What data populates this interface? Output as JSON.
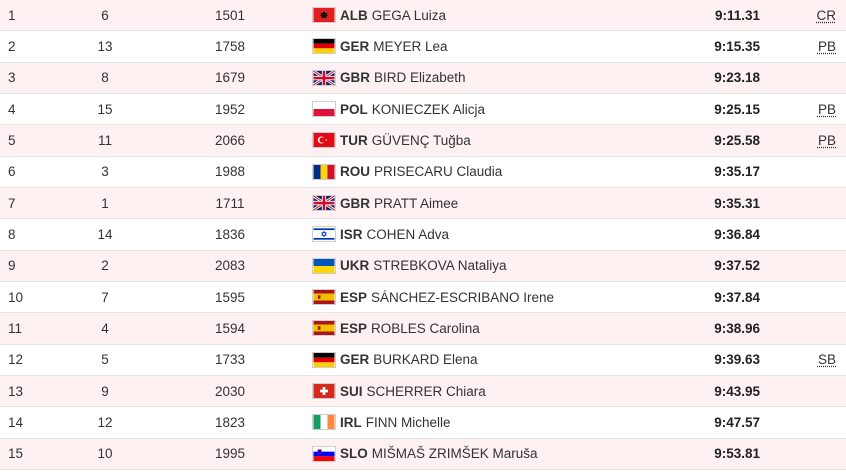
{
  "results": [
    {
      "rank": "1",
      "lane": "6",
      "bib": "1501",
      "flag": "albania-flag",
      "country": "ALB",
      "name": "GEGA Luiza",
      "time": "9:11.31",
      "note": "CR"
    },
    {
      "rank": "2",
      "lane": "13",
      "bib": "1758",
      "flag": "germany-flag",
      "country": "GER",
      "name": "MEYER Lea",
      "time": "9:15.35",
      "note": "PB"
    },
    {
      "rank": "3",
      "lane": "8",
      "bib": "1679",
      "flag": "great-britain-flag",
      "country": "GBR",
      "name": "BIRD Elizabeth",
      "time": "9:23.18",
      "note": ""
    },
    {
      "rank": "4",
      "lane": "15",
      "bib": "1952",
      "flag": "poland-flag",
      "country": "POL",
      "name": "KONIECZEK Alicja",
      "time": "9:25.15",
      "note": "PB"
    },
    {
      "rank": "5",
      "lane": "11",
      "bib": "2066",
      "flag": "turkey-flag",
      "country": "TUR",
      "name": "GÜVENÇ Tuğba",
      "time": "9:25.58",
      "note": "PB"
    },
    {
      "rank": "6",
      "lane": "3",
      "bib": "1988",
      "flag": "romania-flag",
      "country": "ROU",
      "name": "PRISECARU Claudia",
      "time": "9:35.17",
      "note": ""
    },
    {
      "rank": "7",
      "lane": "1",
      "bib": "1711",
      "flag": "great-britain-flag",
      "country": "GBR",
      "name": "PRATT Aimee",
      "time": "9:35.31",
      "note": ""
    },
    {
      "rank": "8",
      "lane": "14",
      "bib": "1836",
      "flag": "israel-flag",
      "country": "ISR",
      "name": "COHEN Adva",
      "time": "9:36.84",
      "note": ""
    },
    {
      "rank": "9",
      "lane": "2",
      "bib": "2083",
      "flag": "ukraine-flag",
      "country": "UKR",
      "name": "STREBKOVA Nataliya",
      "time": "9:37.52",
      "note": ""
    },
    {
      "rank": "10",
      "lane": "7",
      "bib": "1595",
      "flag": "spain-flag",
      "country": "ESP",
      "name": "SÁNCHEZ-ESCRIBANO Irene",
      "time": "9:37.84",
      "note": ""
    },
    {
      "rank": "11",
      "lane": "4",
      "bib": "1594",
      "flag": "spain-flag",
      "country": "ESP",
      "name": "ROBLES Carolina",
      "time": "9:38.96",
      "note": ""
    },
    {
      "rank": "12",
      "lane": "5",
      "bib": "1733",
      "flag": "germany-flag",
      "country": "GER",
      "name": "BURKARD Elena",
      "time": "9:39.63",
      "note": "SB"
    },
    {
      "rank": "13",
      "lane": "9",
      "bib": "2030",
      "flag": "switzerland-flag",
      "country": "SUI",
      "name": "SCHERRER Chiara",
      "time": "9:43.95",
      "note": ""
    },
    {
      "rank": "14",
      "lane": "12",
      "bib": "1823",
      "flag": "ireland-flag",
      "country": "IRL",
      "name": "FINN Michelle",
      "time": "9:47.57",
      "note": ""
    },
    {
      "rank": "15",
      "lane": "10",
      "bib": "1995",
      "flag": "slovenia-flag",
      "country": "SLO",
      "name": "MIŠMAŠ ZRIMŠEK Maruša",
      "time": "9:53.81",
      "note": ""
    }
  ],
  "colors": {
    "odd_row": "#fdf1f1",
    "even_row": "#ffffff",
    "divider": "#e4e4e4",
    "text": "#333333"
  }
}
